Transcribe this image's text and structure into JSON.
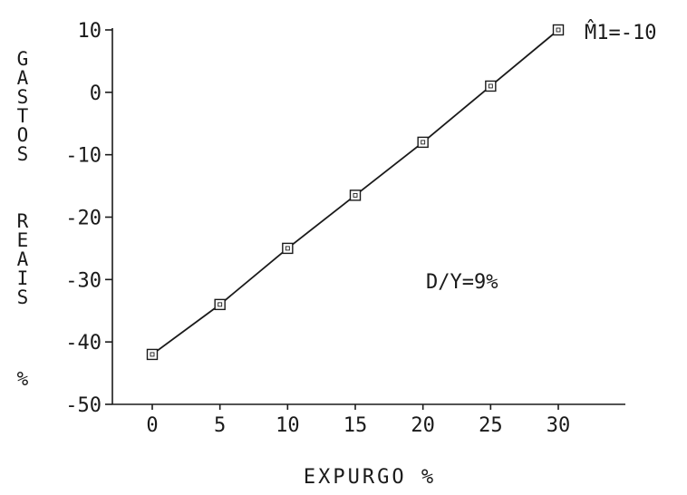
{
  "chart_data": {
    "type": "line",
    "title": "",
    "xlabel": "EXPURGO %",
    "ylabel": "GASTOS REAIS %",
    "x_ticks": [
      "0",
      "5",
      "10",
      "15",
      "20",
      "25",
      "30"
    ],
    "y_ticks": [
      "10",
      "0",
      "-10",
      "-20",
      "-30",
      "-40",
      "-50"
    ],
    "xlim": [
      -5,
      36
    ],
    "ylim": [
      -50,
      10
    ],
    "grid": false,
    "series": [
      {
        "x": [
          0,
          5,
          10,
          15,
          20,
          25,
          30
        ],
        "y": [
          -42,
          -34,
          -25,
          -16.5,
          -8,
          1,
          10
        ],
        "marker": "square"
      }
    ],
    "annotations": [
      {
        "text": "M̂1=-10",
        "position": "top-right"
      },
      {
        "text": "D/Y=9%",
        "position": "center-right"
      }
    ]
  }
}
